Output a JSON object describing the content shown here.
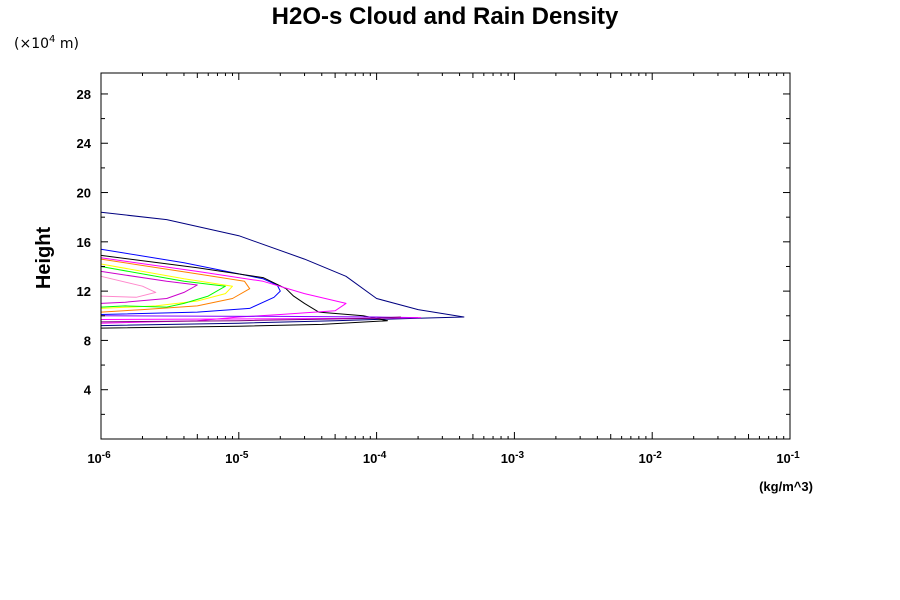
{
  "chart_data": {
    "type": "line",
    "title": "H2O-s Cloud and Rain Density",
    "y_unit_prefix": "(×10",
    "y_unit_exp": "4",
    "y_unit_suffix": " m)",
    "ylabel": "Height",
    "xlabel_unit": "(kg/m^3)",
    "x_scale": "log",
    "xlim": [
      1e-06,
      0.1
    ],
    "ylim": [
      0,
      29.7
    ],
    "x_ticks": [
      {
        "value": 1e-06,
        "base": "10",
        "exp": "-6"
      },
      {
        "value": 1e-05,
        "base": "10",
        "exp": "-5"
      },
      {
        "value": 0.0001,
        "base": "10",
        "exp": "-4"
      },
      {
        "value": 0.001,
        "base": "10",
        "exp": "-3"
      },
      {
        "value": 0.01,
        "base": "10",
        "exp": "-2"
      },
      {
        "value": 0.1,
        "base": "10",
        "exp": "-1"
      }
    ],
    "y_ticks": [
      "4",
      "8",
      "12",
      "16",
      "20",
      "24",
      "28"
    ],
    "grid": false,
    "legend": "none",
    "series": [
      {
        "color": "#000080",
        "points": [
          [
            1e-06,
            18.4
          ],
          [
            3e-06,
            17.8
          ],
          [
            1e-05,
            16.5
          ],
          [
            3e-05,
            14.6
          ],
          [
            6e-05,
            13.2
          ],
          [
            0.0001,
            11.4
          ],
          [
            0.0002,
            10.5
          ],
          [
            0.00043,
            9.9
          ],
          [
            0.0002,
            9.8
          ],
          [
            5e-05,
            9.6
          ],
          [
            1e-05,
            9.4
          ],
          [
            1e-06,
            9.2
          ]
        ]
      },
      {
        "color": "#0000ff",
        "points": [
          [
            1e-06,
            15.4
          ],
          [
            4e-06,
            14.3
          ],
          [
            1.5e-05,
            13.0
          ],
          [
            1.9e-05,
            12.5
          ],
          [
            2e-05,
            12.0
          ],
          [
            1.8e-05,
            11.5
          ],
          [
            1.2e-05,
            10.6
          ],
          [
            5e-06,
            10.3
          ],
          [
            1e-06,
            10.1
          ]
        ]
      },
      {
        "color": "#000000",
        "points": [
          [
            1e-06,
            14.9
          ],
          [
            5e-06,
            13.9
          ],
          [
            1.5e-05,
            13.1
          ],
          [
            2.2e-05,
            12.2
          ],
          [
            2.5e-05,
            11.6
          ],
          [
            3e-05,
            11.0
          ],
          [
            3.8e-05,
            10.3
          ],
          [
            8e-05,
            10.0
          ],
          [
            0.00012,
            9.6
          ],
          [
            4e-05,
            9.3
          ],
          [
            1e-05,
            9.15
          ],
          [
            1e-06,
            9.0
          ]
        ]
      },
      {
        "color": "#ff00ff",
        "points": [
          [
            1e-06,
            14.7
          ],
          [
            5e-06,
            13.6
          ],
          [
            1.5e-05,
            12.8
          ],
          [
            3e-05,
            11.8
          ],
          [
            6e-05,
            11.0
          ],
          [
            5e-05,
            10.4
          ],
          [
            2e-05,
            10.1
          ],
          [
            1e-05,
            9.9
          ],
          [
            5e-06,
            9.6
          ],
          [
            1e-06,
            9.4
          ]
        ]
      },
      {
        "color": "#ff8000",
        "points": [
          [
            1e-06,
            14.6
          ],
          [
            5e-06,
            13.4
          ],
          [
            1.1e-05,
            12.8
          ],
          [
            1.2e-05,
            12.2
          ],
          [
            9e-06,
            11.4
          ],
          [
            5e-06,
            10.8
          ],
          [
            2e-06,
            10.5
          ],
          [
            1e-06,
            10.3
          ]
        ]
      },
      {
        "color": "#ffff00",
        "points": [
          [
            1e-06,
            14.2
          ],
          [
            4e-06,
            13.0
          ],
          [
            9e-06,
            12.4
          ],
          [
            8e-06,
            11.8
          ],
          [
            5e-06,
            11.2
          ],
          [
            2.5e-06,
            10.8
          ],
          [
            1e-06,
            10.6
          ]
        ]
      },
      {
        "color": "#00ff00",
        "points": [
          [
            1e-06,
            14.0
          ],
          [
            4e-06,
            12.8
          ],
          [
            8e-06,
            12.4
          ],
          [
            6e-06,
            11.6
          ],
          [
            4e-06,
            11.0
          ],
          [
            3e-06,
            10.7
          ],
          [
            1.5e-06,
            10.8
          ],
          [
            1e-06,
            10.7
          ]
        ]
      },
      {
        "color": "#cc00cc",
        "points": [
          [
            1e-06,
            13.6
          ],
          [
            3e-06,
            12.8
          ],
          [
            5e-06,
            12.5
          ],
          [
            4e-06,
            11.9
          ],
          [
            3e-06,
            11.4
          ],
          [
            1.5e-06,
            11.1
          ],
          [
            1e-06,
            11.0
          ]
        ]
      },
      {
        "color": "#ff88cc",
        "points": [
          [
            1e-06,
            13.2
          ],
          [
            2e-06,
            12.4
          ],
          [
            2.5e-06,
            11.9
          ],
          [
            1.8e-06,
            11.5
          ],
          [
            1e-06,
            11.6
          ]
        ]
      },
      {
        "color": "#8000ff",
        "points": [
          [
            1e-06,
            10.0
          ],
          [
            2e-05,
            9.95
          ],
          [
            0.0001,
            9.9
          ],
          [
            0.0002,
            9.85
          ]
        ]
      },
      {
        "color": "#ff00ff",
        "points": [
          [
            1e-06,
            9.7
          ],
          [
            2e-05,
            9.75
          ],
          [
            0.0001,
            9.8
          ],
          [
            0.00021,
            9.85
          ]
        ]
      },
      {
        "color": "#800080",
        "points": [
          [
            1e-06,
            9.5
          ],
          [
            1e-05,
            9.6
          ],
          [
            0.0001,
            9.8
          ],
          [
            0.00015,
            9.9
          ]
        ]
      }
    ]
  }
}
